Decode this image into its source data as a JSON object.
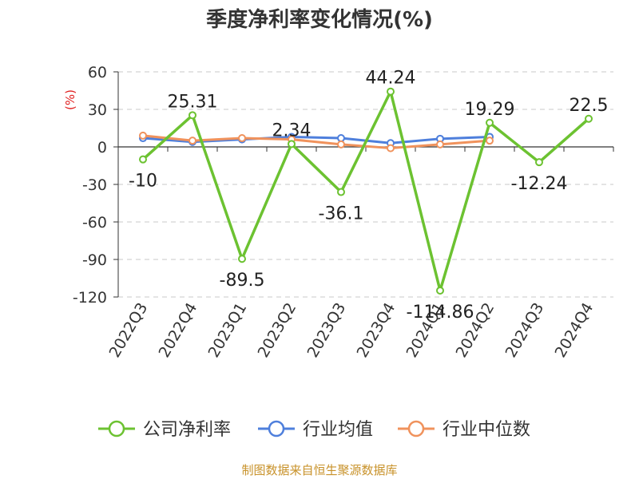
{
  "chart_data": {
    "type": "line",
    "title": "季度净利率变化情况(%)",
    "ylabel": "(%)",
    "xlabel": "",
    "categories": [
      "2022Q3",
      "2022Q4",
      "2023Q1",
      "2023Q2",
      "2023Q3",
      "2023Q4",
      "2024Q1",
      "2024Q2",
      "2024Q3",
      "2024Q4"
    ],
    "ylim": [
      -120,
      60
    ],
    "yticks": [
      60,
      30,
      0,
      -30,
      -60,
      -90,
      -120
    ],
    "grid": true,
    "series": [
      {
        "name": "公司净利率",
        "color": "#6cc231",
        "values": [
          -10,
          25.31,
          -89.5,
          2.34,
          -36.1,
          44.24,
          -114.86,
          19.29,
          -12.24,
          22.5
        ],
        "labels": [
          "-10",
          "25.31",
          "-89.5",
          "2.34",
          "-36.1",
          "44.24",
          "-114.86",
          "19.29",
          "-12.24",
          "22.5"
        ]
      },
      {
        "name": "行业均值",
        "color": "#4e7fdc",
        "values": [
          7,
          4,
          6,
          8,
          7,
          3,
          6.5,
          8,
          null,
          null
        ]
      },
      {
        "name": "行业中位数",
        "color": "#f0925c",
        "values": [
          9,
          5,
          7,
          6,
          2,
          -1,
          2,
          5,
          null,
          null
        ]
      }
    ],
    "legend_position": "bottom",
    "source": "制图数据来自恒生聚源数据库"
  }
}
